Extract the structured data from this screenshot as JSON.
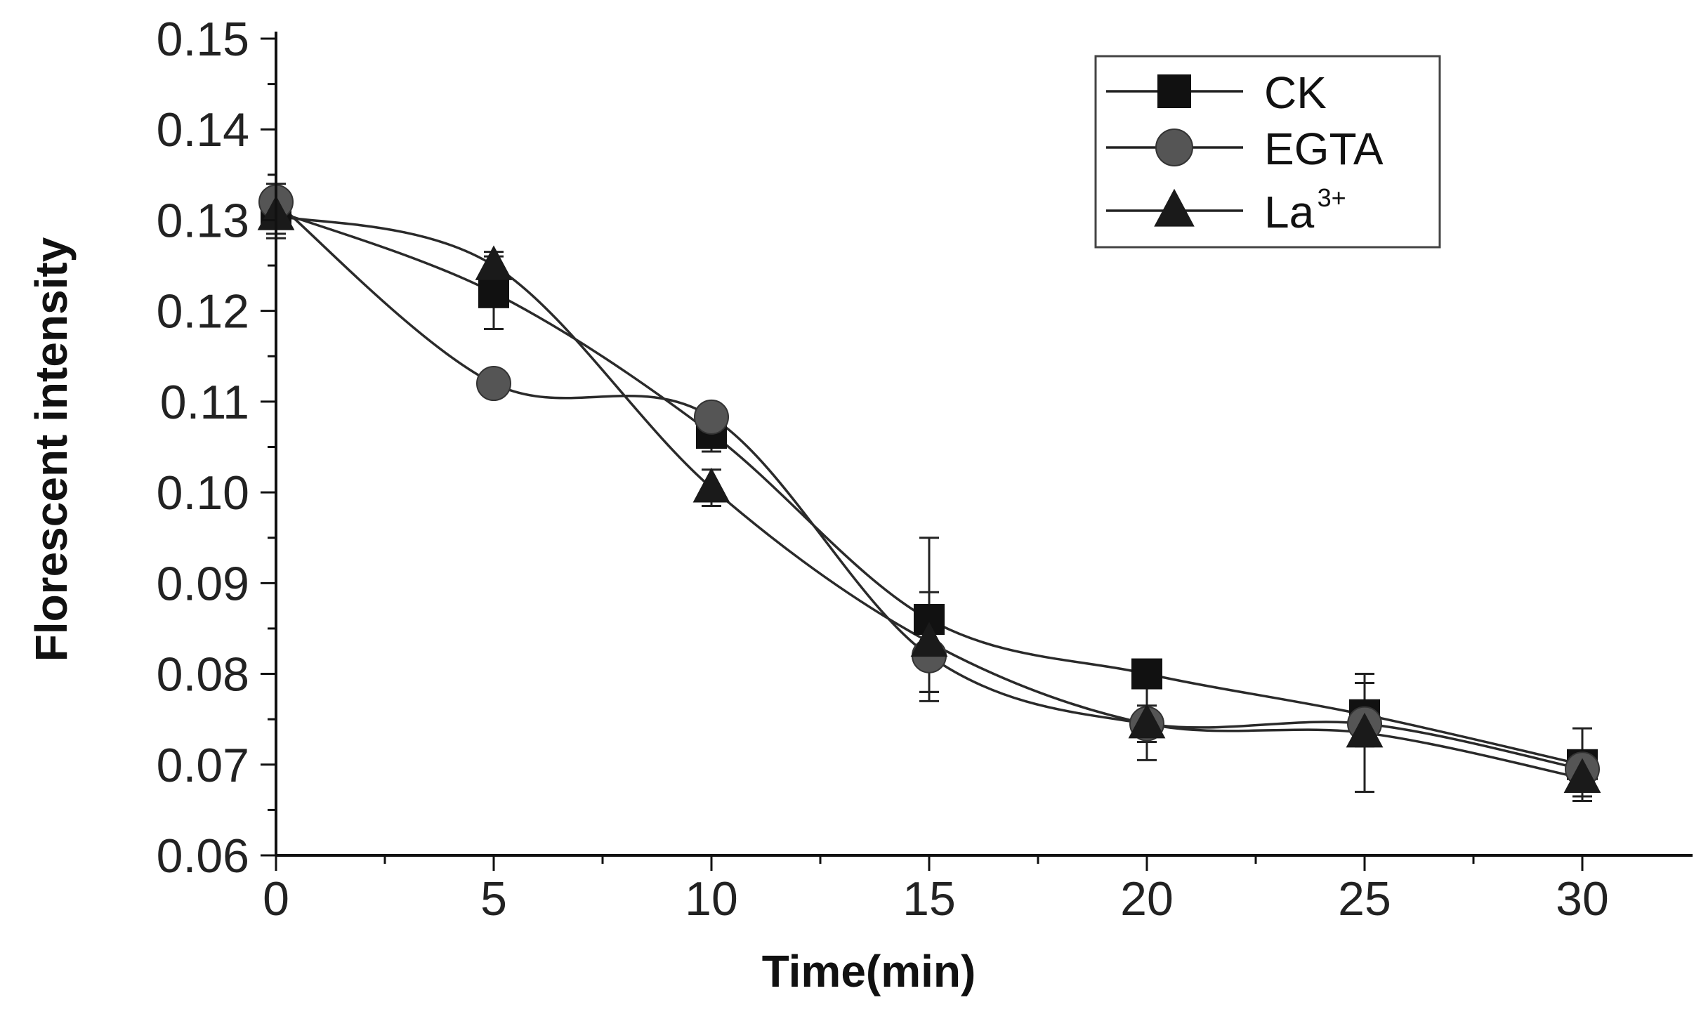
{
  "chart_data": {
    "type": "line",
    "title": "",
    "xlabel": "Time(min)",
    "ylabel": "Florescent intensity",
    "xlim": [
      0,
      32
    ],
    "ylim": [
      0.06,
      0.15
    ],
    "x": [
      0,
      5,
      10,
      15,
      20,
      25,
      30
    ],
    "x_ticks": [
      "0",
      "5",
      "10",
      "15",
      "20",
      "25",
      "30"
    ],
    "y_ticks": [
      "0.06",
      "0.07",
      "0.08",
      "0.09",
      "0.10",
      "0.11",
      "0.12",
      "0.13",
      "0.14",
      "0.15"
    ],
    "y_tick_values": [
      0.06,
      0.07,
      0.08,
      0.09,
      0.1,
      0.11,
      0.12,
      0.13,
      0.14,
      0.15
    ],
    "legend_position": "top-right",
    "series": [
      {
        "name": "CK",
        "marker": "square",
        "values": [
          0.131,
          0.122,
          0.1065,
          0.086,
          0.08,
          0.0755,
          0.07
        ],
        "errors": [
          0.003,
          0.004,
          0.002,
          0.009,
          0.001,
          0.0035,
          0.004
        ]
      },
      {
        "name": "EGTA",
        "marker": "circle",
        "values": [
          0.132,
          0.112,
          0.1083,
          0.082,
          0.0745,
          0.0745,
          0.0695
        ],
        "errors": [
          0.001,
          0.001,
          0.001,
          0.004,
          0.002,
          0.001,
          0.002
        ]
      },
      {
        "name": "La",
        "name_sup": "3+",
        "marker": "triangle",
        "values": [
          0.1305,
          0.125,
          0.1005,
          0.0835,
          0.0745,
          0.0735,
          0.0685
        ],
        "errors": [
          0.002,
          0.0015,
          0.002,
          0.0055,
          0.004,
          0.0065,
          0.002
        ]
      }
    ],
    "colors": {
      "axis": "#111111",
      "line": "#2a2a2a",
      "square": "#111111",
      "circle": "#555555",
      "triangle": "#1a1a1a"
    }
  }
}
